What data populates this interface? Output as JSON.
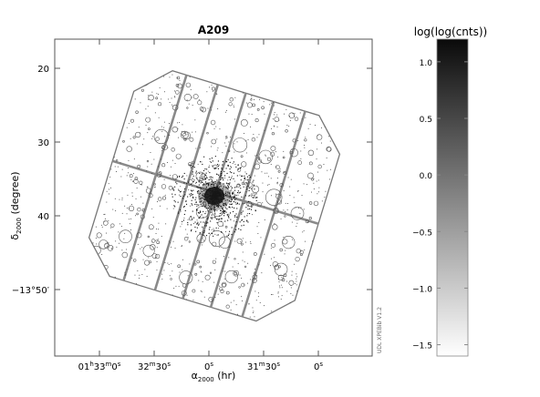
{
  "chart_data": [
    {
      "type": "scatter",
      "title": "A209",
      "xlabel_parts": {
        "base": "α",
        "sub": "2000",
        "unit": " (hr)"
      },
      "ylabel_parts": {
        "base": "δ",
        "sub": "2000",
        "unit": " (degree)"
      },
      "ytick_labels": [
        {
          "text": "20",
          "value": 20
        },
        {
          "text": "30",
          "value": 30
        },
        {
          "text": "40",
          "value": 40
        },
        {
          "text": "−13°50′",
          "value": 50
        }
      ],
      "xtick_labels": [
        {
          "parts": [
            "01",
            "h",
            "33",
            "m",
            "0",
            "s"
          ],
          "value": 0
        },
        {
          "parts": [
            "32",
            "m",
            "30",
            "s"
          ],
          "value": 1
        },
        {
          "parts": [
            "0",
            "s"
          ],
          "value": 2
        },
        {
          "parts": [
            "31",
            "m",
            "30",
            "s"
          ],
          "value": 3
        },
        {
          "parts": [
            "0",
            "s"
          ],
          "value": 4
        }
      ],
      "cluster_center": {
        "x": 2.1,
        "y": 37.3
      },
      "grid": false
    },
    {
      "type": "colorbar",
      "title": "log(log(cnts))",
      "scale": "linear",
      "ylim": [
        -1.6,
        1.2
      ],
      "ticks": [
        1.0,
        0.5,
        0.0,
        -0.5,
        -1.0,
        -1.5
      ],
      "tick_labels": [
        "1.0",
        "0.5",
        "0.0",
        "−0.5",
        "−1.0",
        "−1.5"
      ],
      "color_low": "#ffffff",
      "color_high": "#0a0a0a"
    }
  ],
  "footer_text": "UDL XPEBib V1.2"
}
